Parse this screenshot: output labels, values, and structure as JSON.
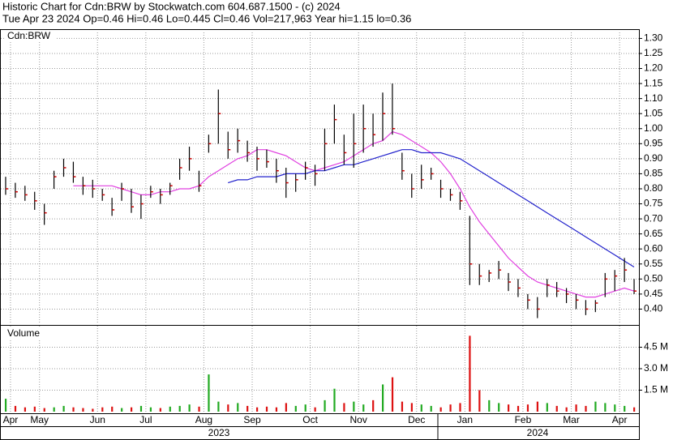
{
  "header": {
    "line1": "Historic Chart for Cdn:BRW by Stockwatch.com 604.687.1500 - (c) 2024",
    "line2": "Tue Apr 23 2024  Op=0.46  Hi=0.46  Lo=0.445  Cl=0.46  Vol=217,963  Year hi=1.15  lo=0.36"
  },
  "years": [
    "2023",
    "2024"
  ],
  "chart_data": [
    {
      "type": "ohlc",
      "title": "Cdn:BRW",
      "categories": [
        null,
        "Apr",
        null,
        null,
        "May",
        null,
        null,
        null,
        null,
        null,
        "Jun",
        null,
        null,
        null,
        null,
        "Jul",
        null,
        null,
        null,
        null,
        null,
        "Aug",
        null,
        null,
        null,
        null,
        "Sep",
        null,
        null,
        null,
        null,
        null,
        "Oct",
        null,
        null,
        null,
        null,
        "Nov",
        null,
        null,
        null,
        null,
        null,
        "Dec",
        null,
        null,
        null,
        null,
        "Jan",
        null,
        null,
        null,
        null,
        null,
        "Feb",
        null,
        null,
        null,
        null,
        "Mar",
        null,
        null,
        null,
        null,
        "Apr",
        null
      ],
      "high": [
        0.84,
        0.82,
        0.81,
        0.79,
        0.75,
        0.86,
        0.9,
        0.89,
        0.84,
        0.83,
        0.8,
        0.77,
        0.82,
        0.8,
        0.78,
        0.81,
        0.8,
        0.82,
        0.9,
        0.94,
        0.86,
        0.98,
        1.13,
        0.99,
        1.0,
        0.96,
        0.94,
        0.93,
        0.9,
        0.87,
        0.85,
        0.89,
        0.88,
        1.0,
        1.08,
        0.98,
        1.05,
        1.08,
        1.05,
        1.12,
        1.15,
        0.92,
        0.85,
        0.88,
        0.87,
        0.83,
        0.8,
        0.79,
        0.71,
        0.55,
        0.53,
        0.56,
        0.52,
        0.5,
        0.45,
        0.44,
        0.5,
        0.49,
        0.47,
        0.45,
        0.43,
        0.43,
        0.52,
        0.53,
        0.57,
        0.5
      ],
      "low": [
        0.78,
        0.77,
        0.76,
        0.73,
        0.68,
        0.8,
        0.84,
        0.82,
        0.78,
        0.77,
        0.76,
        0.71,
        0.76,
        0.72,
        0.7,
        0.77,
        0.75,
        0.78,
        0.83,
        0.86,
        0.79,
        0.92,
        0.95,
        0.9,
        0.92,
        0.89,
        0.86,
        0.87,
        0.82,
        0.77,
        0.79,
        0.83,
        0.81,
        0.86,
        0.95,
        0.88,
        0.87,
        0.92,
        0.94,
        0.96,
        0.98,
        0.83,
        0.77,
        0.8,
        0.83,
        0.77,
        0.76,
        0.73,
        0.48,
        0.48,
        0.49,
        0.5,
        0.46,
        0.44,
        0.4,
        0.37,
        0.44,
        0.44,
        0.42,
        0.4,
        0.38,
        0.39,
        0.44,
        0.46,
        0.49,
        0.45
      ],
      "close": [
        0.8,
        0.79,
        0.78,
        0.76,
        0.72,
        0.84,
        0.87,
        0.84,
        0.81,
        0.8,
        0.78,
        0.73,
        0.8,
        0.74,
        0.75,
        0.79,
        0.78,
        0.81,
        0.87,
        0.9,
        0.81,
        0.95,
        1.05,
        0.93,
        0.96,
        0.92,
        0.9,
        0.89,
        0.86,
        0.82,
        0.83,
        0.87,
        0.85,
        0.95,
        1.03,
        0.92,
        0.95,
        1.0,
        0.98,
        1.05,
        1.0,
        0.86,
        0.8,
        0.83,
        0.85,
        0.8,
        0.78,
        0.76,
        0.55,
        0.51,
        0.52,
        0.53,
        0.49,
        0.47,
        0.43,
        0.4,
        0.48,
        0.46,
        0.45,
        0.43,
        0.4,
        0.42,
        0.5,
        0.51,
        0.53,
        0.46
      ],
      "color": "#000000",
      "close_color": "#cc0000",
      "series": [
        {
          "color": "#e040e0",
          "values": [
            null,
            null,
            null,
            null,
            null,
            null,
            null,
            0.81,
            0.81,
            0.81,
            0.81,
            0.81,
            0.8,
            0.79,
            0.78,
            0.78,
            0.79,
            0.79,
            0.8,
            0.8,
            0.81,
            0.84,
            0.86,
            0.88,
            0.9,
            0.91,
            0.93,
            0.93,
            0.92,
            0.91,
            0.89,
            0.87,
            0.86,
            0.87,
            0.88,
            0.89,
            0.91,
            0.93,
            0.95,
            0.96,
            0.99,
            0.98,
            0.96,
            0.94,
            0.92,
            0.89,
            0.85,
            0.8,
            0.74,
            0.69,
            0.65,
            0.61,
            0.57,
            0.54,
            0.51,
            0.49,
            0.48,
            0.47,
            0.46,
            0.45,
            0.44,
            0.44,
            0.45,
            0.46,
            0.47,
            0.46
          ]
        },
        {
          "color": "#2222cc",
          "values": [
            null,
            null,
            null,
            null,
            null,
            null,
            null,
            null,
            null,
            null,
            null,
            null,
            null,
            null,
            null,
            null,
            null,
            null,
            null,
            null,
            null,
            null,
            null,
            0.82,
            0.83,
            0.83,
            0.84,
            0.84,
            0.84,
            0.85,
            0.85,
            0.85,
            0.86,
            0.86,
            0.87,
            0.88,
            0.88,
            0.89,
            0.9,
            0.91,
            0.92,
            0.93,
            0.93,
            0.92,
            0.92,
            0.92,
            0.91,
            0.9,
            0.88,
            0.86,
            0.84,
            0.82,
            0.8,
            0.78,
            0.76,
            0.74,
            0.72,
            0.7,
            0.68,
            0.66,
            0.64,
            0.62,
            0.6,
            0.58,
            0.56,
            0.54
          ]
        }
      ],
      "ylim": [
        0.35,
        1.32
      ],
      "yticks": [
        {
          "value": 0.4,
          "label": "0.40"
        },
        {
          "value": 0.45,
          "label": "0.45"
        },
        {
          "value": 0.5,
          "label": "0.50"
        },
        {
          "value": 0.55,
          "label": "0.55"
        },
        {
          "value": 0.6,
          "label": "0.60"
        },
        {
          "value": 0.65,
          "label": "0.65"
        },
        {
          "value": 0.7,
          "label": "0.70"
        },
        {
          "value": 0.75,
          "label": "0.75"
        },
        {
          "value": 0.8,
          "label": "0.80"
        },
        {
          "value": 0.85,
          "label": "0.85"
        },
        {
          "value": 0.9,
          "label": "0.90"
        },
        {
          "value": 0.95,
          "label": "0.95"
        },
        {
          "value": 1.0,
          "label": "1.00"
        },
        {
          "value": 1.05,
          "label": "1.05"
        },
        {
          "value": 1.1,
          "label": "1.10"
        },
        {
          "value": 1.15,
          "label": "1.15"
        },
        {
          "value": 1.2,
          "label": "1.20"
        },
        {
          "value": 1.25,
          "label": "1.25"
        },
        {
          "value": 1.3,
          "label": "1.30"
        }
      ],
      "grid": true
    },
    {
      "type": "bar",
      "title": "Volume",
      "values": [
        900000,
        400000,
        300000,
        350000,
        250000,
        300000,
        400000,
        300000,
        250000,
        200000,
        300000,
        350000,
        250000,
        300000,
        400000,
        300000,
        250000,
        350000,
        400000,
        500000,
        350000,
        2600000,
        700000,
        500000,
        600000,
        400000,
        300000,
        350000,
        300000,
        600000,
        400000,
        500000,
        300000,
        800000,
        1600000,
        600000,
        700000,
        500000,
        800000,
        1900000,
        2400000,
        700000,
        600000,
        500000,
        400000,
        300000,
        500000,
        600000,
        5300000,
        1500000,
        800000,
        600000,
        500000,
        400000,
        500000,
        700000,
        600000,
        400000,
        300000,
        500000,
        400000,
        700000,
        600000,
        500000,
        400000,
        300000
      ],
      "up_color": "#22aa22",
      "down_color": "#dd1111",
      "ylim": [
        0,
        6000000
      ],
      "yticks": [
        {
          "value": 1500000,
          "label": "1.5 M"
        },
        {
          "value": 3000000,
          "label": "3.0 M"
        },
        {
          "value": 4500000,
          "label": "4.5 M"
        }
      ],
      "grid": true
    }
  ]
}
